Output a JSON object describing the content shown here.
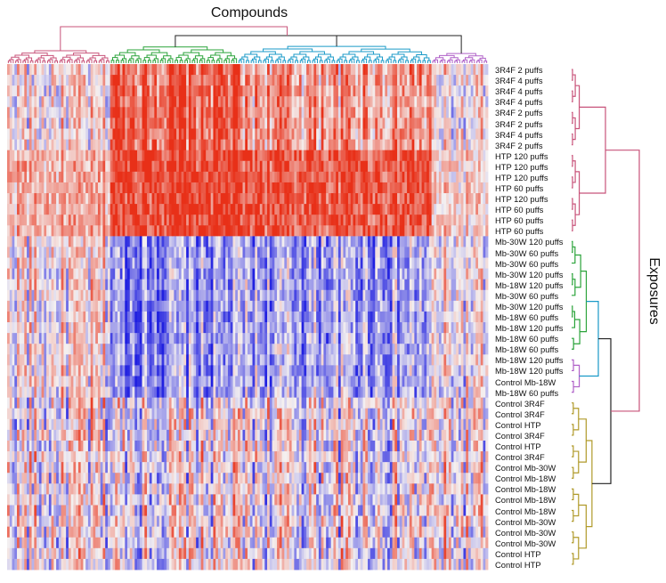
{
  "chart_data": {
    "type": "heatmap",
    "title": "",
    "col_axis_title": "Compounds",
    "row_axis_title": "Exposures",
    "color_scale": {
      "low": "#2020e0",
      "mid": "#f4f0f0",
      "high": "#e83018"
    },
    "row_labels": [
      "3R4F 2 puffs",
      "3R4F 4 puffs",
      "3R4F 4 puffs",
      "3R4F 4 puffs",
      "3R4F 2 puffs",
      "3R4F 2 puffs",
      "3R4F 4 puffs",
      "3R4F 2 puffs",
      "HTP 120 puffs",
      "HTP 120 puffs",
      "HTP 120 puffs",
      "HTP  60 puffs",
      "HTP 120 puffs",
      "HTP  60 puffs",
      "HTP  60 puffs",
      "HTP  60 puffs",
      "Mb-30W 120 puffs",
      "Mb-30W  60 puffs",
      "Mb-30W  60 puffs",
      "Mb-30W 120 puffs",
      "Mb-18W 120 puffs",
      "Mb-30W  60 puffs",
      "Mb-30W 120 puffs",
      "Mb-18W  60 puffs",
      "Mb-18W 120 puffs",
      "Mb-18W  60 puffs",
      "Mb-18W  60 puffs",
      "Mb-18W 120 puffs",
      "Mb-18W 120 puffs",
      "Control Mb-18W",
      "Mb-18W  60 puffs",
      "Control 3R4F",
      "Control 3R4F",
      "Control HTP",
      "Control 3R4F",
      "Control HTP",
      "Control 3R4F",
      "Control Mb-30W",
      "Control Mb-18W",
      "Control Mb-18W",
      "Control Mb-18W",
      "Control Mb-18W",
      "Control Mb-30W",
      "Control Mb-30W",
      "Control Mb-30W",
      "Control HTP",
      "Control HTP"
    ],
    "row_groups": [
      {
        "name": "3R4F",
        "color": "#c8537a",
        "rows": [
          0,
          7
        ]
      },
      {
        "name": "HTP",
        "color": "#c8537a",
        "rows": [
          8,
          15
        ]
      },
      {
        "name": "Mb-30W / Mb-18W",
        "color": "#2aa33a",
        "rows": [
          16,
          26
        ]
      },
      {
        "name": "Mb-18W",
        "color": "#b061c8",
        "rows": [
          27,
          30
        ]
      },
      {
        "name": "Control",
        "color": "#b09a2a",
        "rows": [
          31,
          46
        ]
      }
    ],
    "col_clusters": [
      {
        "name": "cluster-1",
        "color": "#c8537a",
        "cols": [
          0,
          41
        ]
      },
      {
        "name": "cluster-2",
        "color": "#2aa33a",
        "cols": [
          42,
          93
        ]
      },
      {
        "name": "cluster-3",
        "color": "#1a9ac8",
        "cols": [
          94,
          172
        ]
      },
      {
        "name": "cluster-4",
        "color": "#b061c8",
        "cols": [
          173,
          195
        ]
      }
    ],
    "n_cols": 196,
    "block_means": [
      {
        "rows": "3R4F",
        "cols": [
          "neutral",
          "high",
          "mixed-high",
          "neutral"
        ]
      },
      {
        "rows": "HTP",
        "cols": [
          "mixed-high",
          "high",
          "high",
          "mixed"
        ]
      },
      {
        "rows": "Mb e-cig",
        "cols": [
          "mixed",
          "low",
          "low",
          "mixed"
        ]
      },
      {
        "rows": "Control",
        "cols": [
          "mixed",
          "mixed",
          "mixed",
          "mixed"
        ]
      }
    ]
  }
}
